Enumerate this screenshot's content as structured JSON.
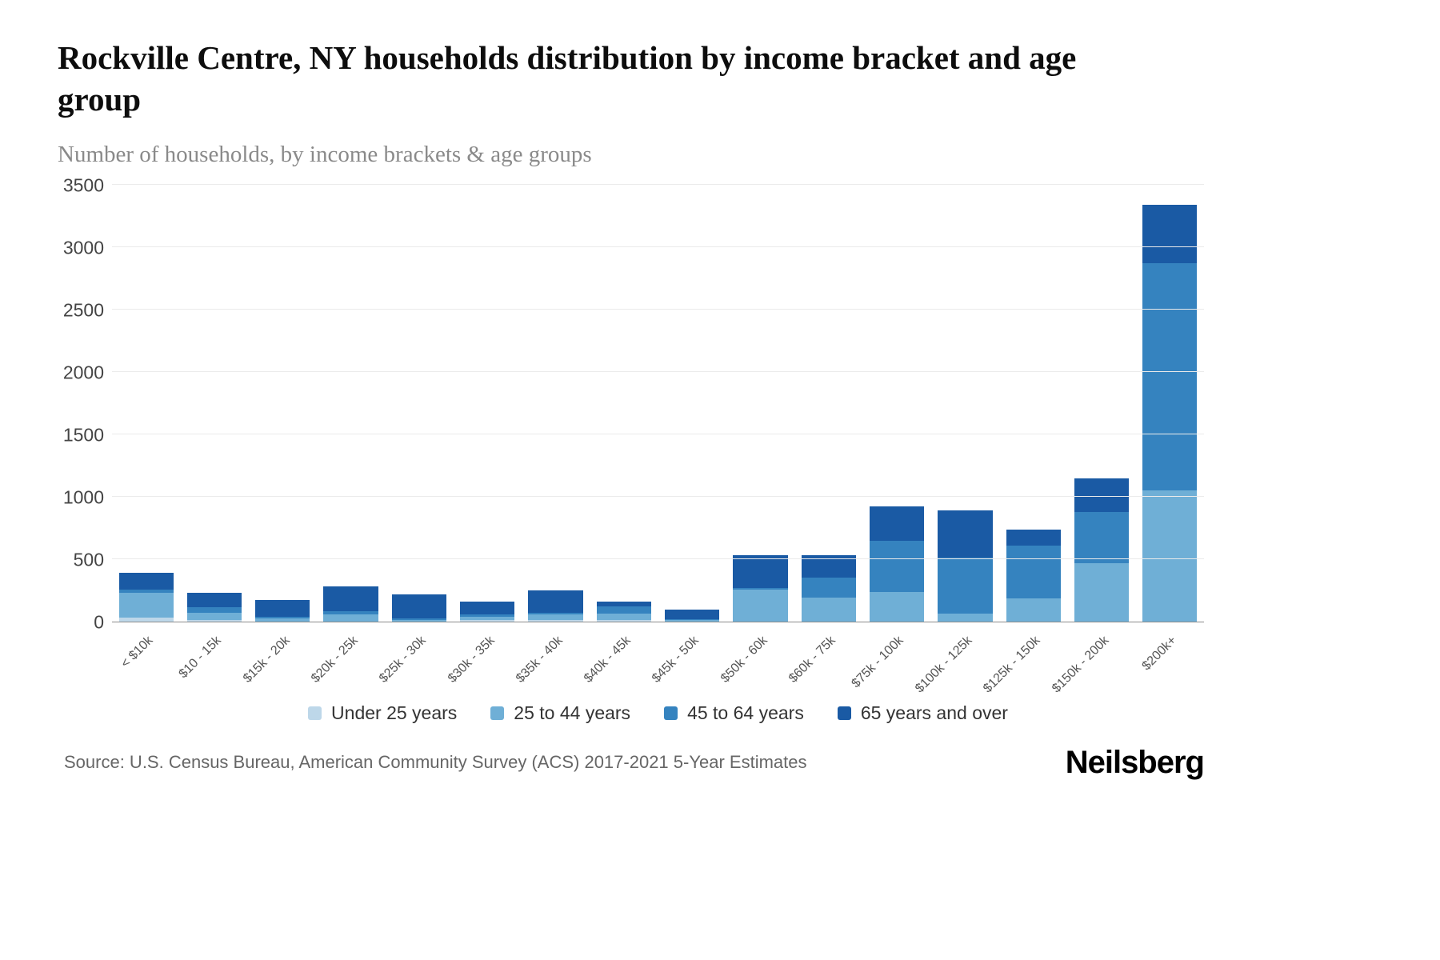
{
  "page": {
    "title": "Rockville Centre, NY households distribution by income bracket and age group",
    "subtitle": "Number of households, by income brackets & age groups",
    "source": "Source: U.S. Census Bureau, American Community Survey (ACS) 2017-2021 5-Year Estimates",
    "brand": "Neilsberg"
  },
  "chart_data": {
    "type": "bar",
    "stacked": true,
    "title": "Rockville Centre, NY households distribution by income bracket and age group",
    "ylabel": "Number of households",
    "xlabel": "",
    "ylim": [
      0,
      3500
    ],
    "yticks": [
      0,
      500,
      1000,
      1500,
      2000,
      2500,
      3000,
      3500
    ],
    "grid": true,
    "legend_position": "bottom",
    "categories": [
      "< $10k",
      "$10 - 15k",
      "$15k - 20k",
      "$20k - 25k",
      "$25k - 30k",
      "$30k - 35k",
      "$35k - 40k",
      "$40k - 45k",
      "$45k - 50k",
      "$50k - 60k",
      "$60k - 75k",
      "$75k - 100k",
      "$100k - 125k",
      "$125k - 150k",
      "$150k - 200k",
      "$200k+"
    ],
    "series": [
      {
        "name": "Under 25 years",
        "color": "#bdd7e9",
        "values": [
          30,
          10,
          0,
          0,
          0,
          10,
          10,
          10,
          0,
          0,
          0,
          0,
          0,
          0,
          0,
          0
        ]
      },
      {
        "name": "25 to 44 years",
        "color": "#6fafd6",
        "values": [
          200,
          60,
          25,
          55,
          10,
          30,
          45,
          55,
          10,
          255,
          195,
          240,
          65,
          185,
          470,
          1050
        ]
      },
      {
        "name": "45 to 64 years",
        "color": "#3583bf",
        "values": [
          25,
          45,
          15,
          25,
          15,
          20,
          15,
          55,
          10,
          15,
          160,
          405,
          445,
          425,
          405,
          1820
        ]
      },
      {
        "name": "65 years and over",
        "color": "#1a5aa4",
        "values": [
          135,
          115,
          130,
          205,
          195,
          100,
          180,
          40,
          75,
          260,
          180,
          275,
          380,
          130,
          275,
          470
        ]
      }
    ]
  }
}
